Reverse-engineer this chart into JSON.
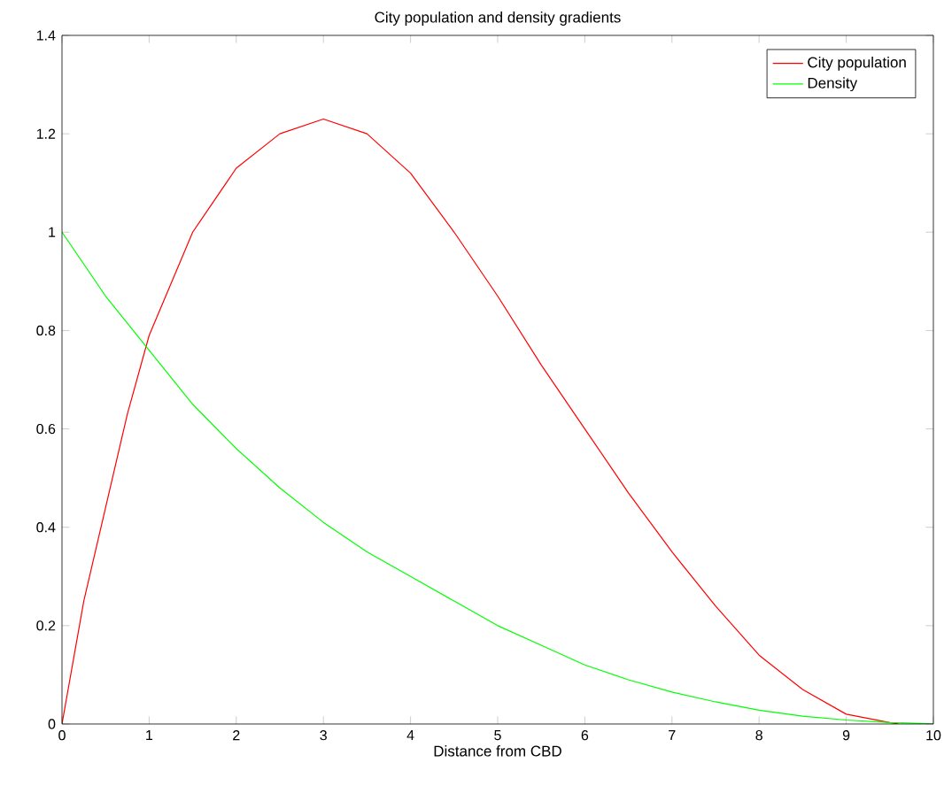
{
  "chart_data": {
    "type": "line",
    "title": "City population and density gradients",
    "xlabel": "Distance from CBD",
    "xlim": [
      0,
      10
    ],
    "ylim": [
      0,
      1.4
    ],
    "xticks": [
      0,
      1,
      2,
      3,
      4,
      5,
      6,
      7,
      8,
      9,
      10
    ],
    "yticks": [
      0,
      0.2,
      0.4,
      0.6,
      0.8,
      1,
      1.2,
      1.4
    ],
    "legend": "top right",
    "grid": false,
    "marker": "none",
    "line_style": "solid",
    "series": [
      {
        "name": "City population",
        "color": "#ff0000",
        "x": [
          0,
          0.25,
          0.5,
          0.75,
          1,
          1.5,
          2,
          2.5,
          3,
          3.5,
          4,
          4.5,
          5,
          5.5,
          6,
          6.5,
          7,
          7.5,
          8,
          8.5,
          9,
          9.5,
          9.6
        ],
        "values": [
          0,
          0.25,
          0.44,
          0.63,
          0.79,
          1.0,
          1.13,
          1.2,
          1.23,
          1.2,
          1.12,
          1.0,
          0.87,
          0.73,
          0.6,
          0.47,
          0.35,
          0.24,
          0.14,
          0.07,
          0.02,
          0.003,
          0
        ]
      },
      {
        "name": "Density",
        "color": "#00ff00",
        "x": [
          0,
          0.5,
          1,
          1.5,
          2,
          2.5,
          3,
          3.5,
          4,
          4.5,
          5,
          5.5,
          6,
          6.5,
          7,
          7.5,
          8,
          8.5,
          9,
          9.5,
          10
        ],
        "values": [
          1,
          0.87,
          0.76,
          0.65,
          0.56,
          0.48,
          0.41,
          0.35,
          0.3,
          0.25,
          0.2,
          0.16,
          0.12,
          0.09,
          0.065,
          0.045,
          0.028,
          0.016,
          0.008,
          0.003,
          0
        ]
      }
    ]
  }
}
